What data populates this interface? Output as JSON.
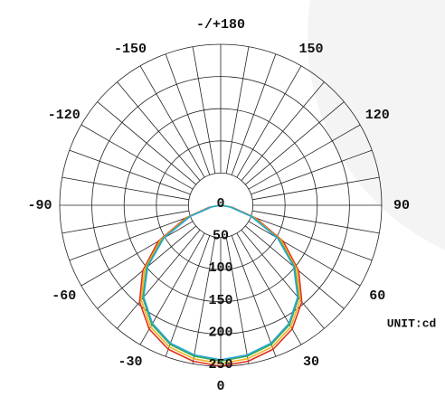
{
  "chart_data": {
    "type": "polar",
    "unit_label": "UNIT:cd",
    "theta": [
      -90,
      -80,
      -70,
      -60,
      -50,
      -40,
      -30,
      -20,
      -10,
      0,
      10,
      20,
      30,
      40,
      50,
      60,
      70,
      80,
      90
    ],
    "series": [
      {
        "color": "#e0301e",
        "values": [
          0,
          18,
          58,
          112,
          158,
          196,
          222,
          238,
          246,
          250,
          246,
          238,
          222,
          196,
          158,
          112,
          58,
          18,
          0
        ]
      },
      {
        "color": "#f2b21c",
        "values": [
          0,
          16,
          55,
          108,
          154,
          192,
          218,
          234,
          242,
          246,
          242,
          234,
          218,
          192,
          154,
          108,
          55,
          16,
          0
        ]
      },
      {
        "color": "#3aa64a",
        "values": [
          0,
          15,
          52,
          104,
          150,
          188,
          214,
          230,
          238,
          242,
          238,
          230,
          214,
          188,
          150,
          104,
          52,
          15,
          0
        ]
      },
      {
        "color": "#29a8d8",
        "values": [
          0,
          14,
          50,
          102,
          148,
          186,
          212,
          228,
          236,
          240,
          236,
          228,
          212,
          186,
          148,
          102,
          50,
          14,
          0
        ]
      }
    ],
    "rlim": [
      0,
      250
    ],
    "rticks": [
      0,
      50,
      100,
      150,
      200,
      250
    ],
    "theta_ticks": [
      0,
      30,
      60,
      90,
      120,
      150,
      {
        "value": 180,
        "label": "-/+180"
      },
      -150,
      -120,
      -90,
      -60,
      -30
    ],
    "grid_step": 10
  }
}
